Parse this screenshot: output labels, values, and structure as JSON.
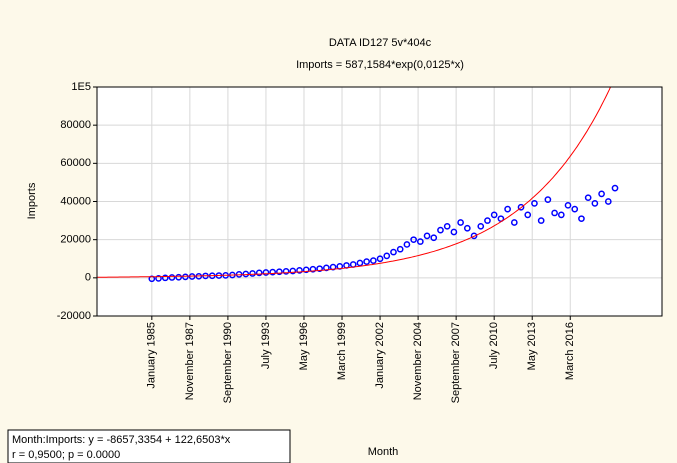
{
  "chart_data": {
    "type": "scatter",
    "title": "DATA ID127 5v*404c",
    "subtitle": "Imports = 587,1584*exp(0,0125*x)",
    "x_label": "Month",
    "y_label": "Imports",
    "fit": {
      "a": 587.1584,
      "b": 0.0125,
      "color": "#ff0000"
    },
    "annotations": [
      "Month:Imports:   y = -8657,3354 + 122,6503*x",
      "r = 0,9500; p = 0.0000"
    ],
    "xlim": [
      -48,
      457
    ],
    "ylim": [
      -20000,
      100000
    ],
    "grid": true,
    "xticks": [
      {
        "value": 1,
        "label": "January 1985"
      },
      {
        "value": 35,
        "label": "November 1987"
      },
      {
        "value": 69,
        "label": "September 1990"
      },
      {
        "value": 103,
        "label": "July 1993"
      },
      {
        "value": 137,
        "label": "May 1996"
      },
      {
        "value": 171,
        "label": "March 1999"
      },
      {
        "value": 205,
        "label": "January 2002"
      },
      {
        "value": 239,
        "label": "November 2004"
      },
      {
        "value": 273,
        "label": "September 2007"
      },
      {
        "value": 307,
        "label": "July 2010"
      },
      {
        "value": 341,
        "label": "May 2013"
      },
      {
        "value": 375,
        "label": "March 2016"
      }
    ],
    "yticks": [
      -20000,
      0,
      20000,
      40000,
      60000,
      80000,
      {
        "value": 100000,
        "label": "1E5"
      }
    ],
    "series": [
      {
        "name": "Imports",
        "color": "#0000ff",
        "x": [
          1,
          7,
          13,
          19,
          25,
          31,
          37,
          43,
          49,
          55,
          61,
          67,
          73,
          79,
          85,
          91,
          97,
          103,
          109,
          115,
          121,
          127,
          133,
          139,
          145,
          151,
          157,
          163,
          169,
          175,
          181,
          187,
          193,
          199,
          205,
          211,
          217,
          223,
          229,
          235,
          241,
          247,
          253,
          259,
          265,
          271,
          277,
          283,
          289,
          295,
          301,
          307,
          313,
          319,
          325,
          331,
          337,
          343,
          349,
          355,
          361,
          367,
          373,
          379,
          385,
          391,
          397,
          403,
          409,
          415
        ],
        "values": [
          -500,
          -300,
          0,
          200,
          300,
          500,
          700,
          800,
          1000,
          1100,
          1200,
          1300,
          1500,
          1800,
          2000,
          2300,
          2600,
          2800,
          3000,
          3200,
          3400,
          3600,
          3900,
          4200,
          4500,
          4800,
          5200,
          5600,
          6000,
          6500,
          7000,
          7800,
          8500,
          9000,
          10000,
          11500,
          13500,
          15000,
          17500,
          20000,
          19000,
          22000,
          21000,
          25000,
          27000,
          24000,
          29000,
          26000,
          22000,
          27000,
          30000,
          33000,
          31000,
          36000,
          29000,
          37000,
          33000,
          39000,
          30000,
          41000,
          34000,
          33000,
          38000,
          36000,
          31000,
          42000,
          39000,
          44000,
          40000,
          47000
        ]
      }
    ]
  }
}
